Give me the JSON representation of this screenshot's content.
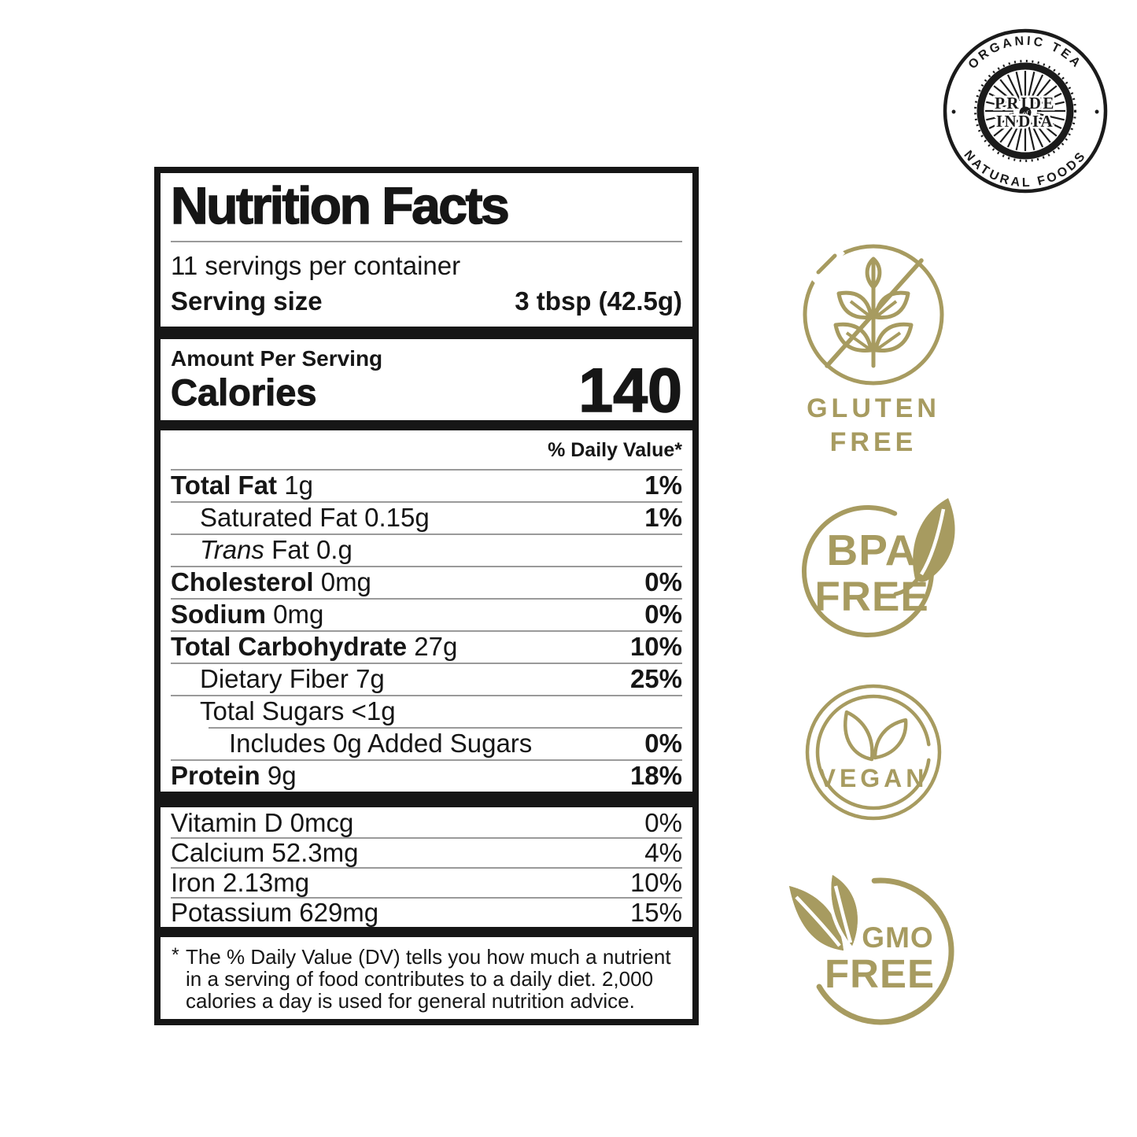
{
  "colors": {
    "accent": "#a79b60",
    "label_ink": "#161616",
    "separator": "#9a9a9a"
  },
  "logo": {
    "top_arc": "ORGANIC TEA",
    "bottom_arc": "NATURAL FOODS",
    "dot": "•",
    "center_line1": "PRIDE",
    "center_line2": "of",
    "center_line3": "INDIA"
  },
  "nutrition_label": {
    "title": "Nutrition Facts",
    "servings_per_container": "11 servings per container",
    "serving_size_label": "Serving size",
    "serving_size_value": "3 tbsp (42.5g)",
    "amount_per_serving": "Amount Per Serving",
    "calories_label": "Calories",
    "calories_value": "140",
    "daily_value_header": "% Daily Value*",
    "rows": [
      {
        "name": "Total Fat",
        "amount": "1g",
        "dv": "1%",
        "name_bold": true,
        "dv_bold": true,
        "indent": 0
      },
      {
        "name": "Saturated Fat",
        "amount": "0.15g",
        "dv": "1%",
        "dv_bold": true,
        "indent": 1
      },
      {
        "italic_prefix": "Trans",
        "name": "Fat",
        "amount": "0.g",
        "dv": "",
        "indent": 1
      },
      {
        "name": "Cholesterol",
        "amount": "0mg",
        "dv": "0%",
        "name_bold": true,
        "dv_bold": true,
        "indent": 0
      },
      {
        "name": "Sodium",
        "amount": "0mg",
        "dv": "0%",
        "name_bold": true,
        "dv_bold": true,
        "indent": 0
      },
      {
        "name": "Total Carbohydrate",
        "amount": "27g",
        "dv": "10%",
        "name_bold": true,
        "dv_bold": true,
        "indent": 0
      },
      {
        "name": "Dietary Fiber",
        "amount": "7g",
        "dv": "25%",
        "dv_bold": true,
        "indent": 1
      },
      {
        "name": "Total Sugars",
        "amount": "<1g",
        "dv": "",
        "indent": 1
      },
      {
        "name": "Includes 0g Added Sugars",
        "amount": "",
        "dv": "0%",
        "dv_bold": true,
        "indent": 2,
        "sep_indent": true
      },
      {
        "name": "Protein",
        "amount": "9g",
        "dv": "18%",
        "name_bold": true,
        "dv_bold": true,
        "indent": 0
      }
    ],
    "vitamins": [
      {
        "name": "Vitamin D",
        "amount": "0mcg",
        "dv": "0%"
      },
      {
        "name": "Calcium",
        "amount": "52.3mg",
        "dv": "4%"
      },
      {
        "name": "Iron",
        "amount": "2.13mg",
        "dv": "10%"
      },
      {
        "name": "Potassium",
        "amount": "629mg",
        "dv": "15%"
      }
    ],
    "footnote_marker": "*",
    "footnote": "The % Daily Value (DV) tells you how much a nutrient in a serving of food contributes to a daily diet. 2,000 calories a day is used for general nutrition advice."
  },
  "badges": [
    {
      "id": "gluten-free",
      "line1": "GLUTEN",
      "line2": "FREE"
    },
    {
      "id": "bpa-free",
      "line1": "BPA",
      "line2": "FREE"
    },
    {
      "id": "vegan",
      "line1": "VEGAN",
      "line2": ""
    },
    {
      "id": "gmo-free",
      "line1": "GMO",
      "line2": "FREE"
    }
  ]
}
